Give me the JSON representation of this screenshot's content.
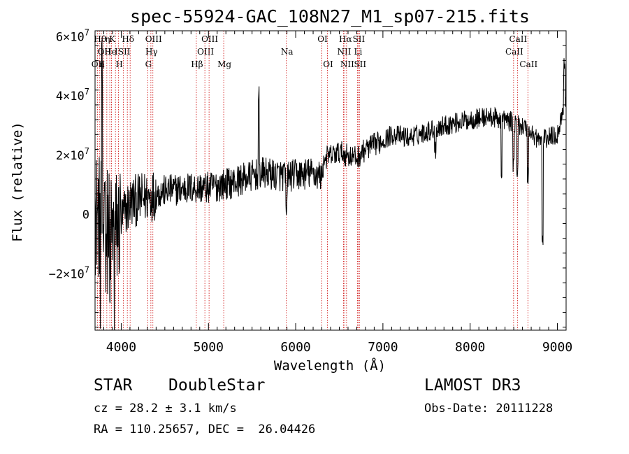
{
  "chart_data": {
    "type": "line",
    "title": "spec-55924-GAC_108N27_M1_sp07-215.fits",
    "xlabel": "Wavelength (Å)",
    "ylabel": "Flux (relative)",
    "xlim": [
      3700,
      9100
    ],
    "ylim": [
      -39000000.0,
      62000000.0
    ],
    "x_ticks": [
      {
        "v": 4000,
        "t": "4000"
      },
      {
        "v": 5000,
        "t": "5000"
      },
      {
        "v": 6000,
        "t": "6000"
      },
      {
        "v": 7000,
        "t": "7000"
      },
      {
        "v": 8000,
        "t": "8000"
      },
      {
        "v": 9000,
        "t": "9000"
      }
    ],
    "y_ticks": [
      {
        "v": -20000000.0,
        "m": "−2×10",
        "e": "7"
      },
      {
        "v": 0,
        "m": "0",
        "e": ""
      },
      {
        "v": 20000000.0,
        "m": "2×10",
        "e": "7"
      },
      {
        "v": 40000000.0,
        "m": "4×10",
        "e": "7"
      },
      {
        "v": 60000000.0,
        "m": "6×10",
        "e": "7"
      }
    ],
    "line_color": "#000000",
    "marker_color": "#cc0000",
    "grid": false,
    "lines": [
      {
        "x": 3727,
        "label": "OII",
        "row": 2
      },
      {
        "x": 3750,
        "label": "Hθ",
        "row": 0
      },
      {
        "x": 3771,
        "label": "η",
        "row": 2
      },
      {
        "x": 3798,
        "label": "OII",
        "row": 1
      },
      {
        "x": 3835,
        "label": "η",
        "row": 0
      },
      {
        "x": 3869,
        "label": "He",
        "row": 1
      },
      {
        "x": 3889,
        "label": "K",
        "row": 0
      },
      {
        "x": 3934,
        "label": "I",
        "row": 1
      },
      {
        "x": 3969,
        "label": "H",
        "row": 2
      },
      {
        "x": 4026,
        "label": "SII",
        "row": 1
      },
      {
        "x": 4070,
        "label": "Hδ",
        "row": 0
      },
      {
        "x": 4102,
        "label": "",
        "row": 0
      },
      {
        "x": 4304,
        "label": "G",
        "row": 2
      },
      {
        "x": 4340,
        "label": "Hγ",
        "row": 1
      },
      {
        "x": 4363,
        "label": "OIII",
        "row": 0
      },
      {
        "x": 4861,
        "label": "Hβ",
        "row": 2
      },
      {
        "x": 4959,
        "label": "OIII",
        "row": 1
      },
      {
        "x": 5007,
        "label": "OIII",
        "row": 0
      },
      {
        "x": 5175,
        "label": "Mg",
        "row": 2
      },
      {
        "x": 5893,
        "label": "Na",
        "row": 1
      },
      {
        "x": 6300,
        "label": "OI",
        "row": 0
      },
      {
        "x": 6364,
        "label": "OI",
        "row": 2
      },
      {
        "x": 6548,
        "label": "NII",
        "row": 1
      },
      {
        "x": 6563,
        "label": "Hα",
        "row": 0
      },
      {
        "x": 6583,
        "label": "NII",
        "row": 2
      },
      {
        "x": 6708,
        "label": "Li",
        "row": 1
      },
      {
        "x": 6716,
        "label": "SII",
        "row": 0
      },
      {
        "x": 6731,
        "label": "SII",
        "row": 2
      },
      {
        "x": 8498,
        "label": "CaII",
        "row": 1
      },
      {
        "x": 8542,
        "label": "CaII",
        "row": 0
      },
      {
        "x": 8662,
        "label": "CaII",
        "row": 2
      }
    ],
    "spectrum_anchors": [
      [
        3700,
        1000000.0
      ],
      [
        3900,
        -8000000.0
      ],
      [
        4100,
        4000000.0
      ],
      [
        4300,
        6000000.0
      ],
      [
        4500,
        8000000.0
      ],
      [
        4800,
        9000000.0
      ],
      [
        5000,
        9000000.0
      ],
      [
        5300,
        11000000.0
      ],
      [
        5600,
        14000000.0
      ],
      [
        5900,
        13000000.0
      ],
      [
        6200,
        14000000.0
      ],
      [
        6300,
        13000000.0
      ],
      [
        6330,
        19000000.0
      ],
      [
        6500,
        21000000.0
      ],
      [
        6700,
        19000000.0
      ],
      [
        6800,
        22000000.0
      ],
      [
        7000,
        25000000.0
      ],
      [
        7100,
        27000000.0
      ],
      [
        7300,
        26000000.0
      ],
      [
        7500,
        28000000.0
      ],
      [
        7700,
        30000000.0
      ],
      [
        8000,
        32000000.0
      ],
      [
        8200,
        33000000.0
      ],
      [
        8400,
        32000000.0
      ],
      [
        8600,
        30000000.0
      ],
      [
        8800,
        25000000.0
      ],
      [
        9000,
        27000000.0
      ],
      [
        9100,
        40000000.0
      ]
    ]
  },
  "info": {
    "class": "STAR",
    "subclass": "DoubleStar",
    "survey": "LAMOST DR3",
    "cz": "cz = 28.2 ± 3.1 km/s",
    "obs_date": "Obs-Date: 20111228",
    "coords": "RA = 110.25657, DEC =  26.04426"
  }
}
